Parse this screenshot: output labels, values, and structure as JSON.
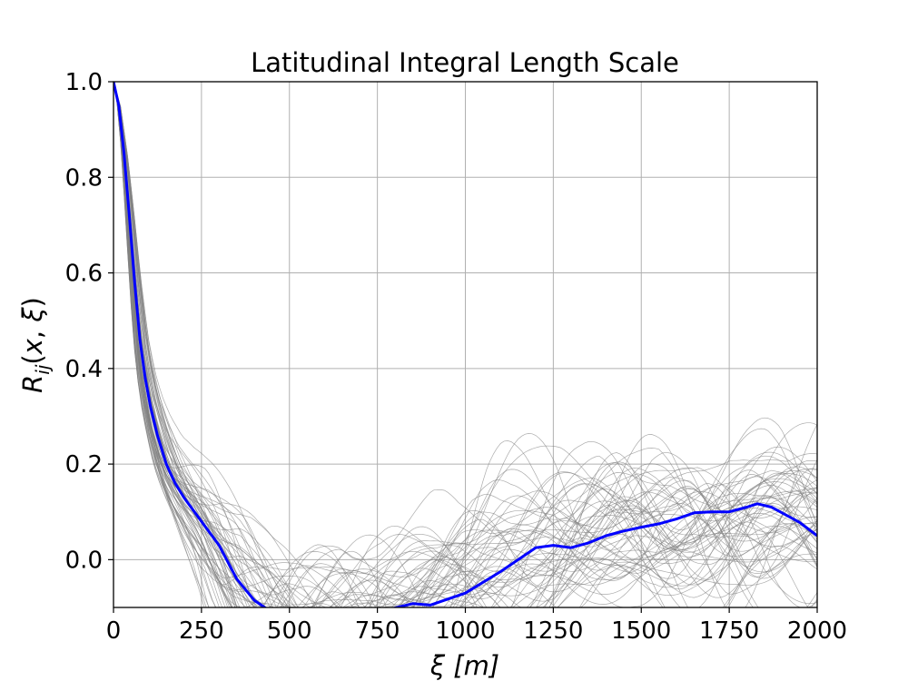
{
  "chart_data": {
    "type": "line",
    "title": "Latitudinal Integral Length Scale",
    "xlabel": "ξ [m]",
    "ylabel": "R_ij(x, ξ)",
    "xlim": [
      0,
      2000
    ],
    "ylim": [
      -0.1,
      1.0
    ],
    "xticks": [
      "0",
      "250",
      "500",
      "750",
      "1000",
      "1250",
      "1500",
      "1750",
      "2000"
    ],
    "yticks": [
      "0.0",
      "0.2",
      "0.4",
      "0.6",
      "0.8",
      "1.0"
    ],
    "grid": true,
    "colors": {
      "mean": "#0000ff",
      "ensemble": "#808080",
      "grid": "#b0b0b0"
    },
    "series": [
      {
        "role": "mean",
        "x": [
          0,
          15,
          30,
          45,
          60,
          75,
          90,
          105,
          125,
          150,
          175,
          200,
          250,
          300,
          350,
          400,
          450,
          480,
          550,
          650,
          750,
          850,
          900,
          1000,
          1100,
          1200,
          1250,
          1300,
          1350,
          1400,
          1450,
          1500,
          1550,
          1600,
          1650,
          1700,
          1750,
          1800,
          1830,
          1870,
          1900,
          1950,
          2000
        ],
        "y": [
          1.0,
          0.95,
          0.85,
          0.72,
          0.58,
          0.46,
          0.38,
          0.32,
          0.26,
          0.2,
          0.16,
          0.13,
          0.08,
          0.03,
          -0.04,
          -0.085,
          -0.11,
          -0.12,
          -0.13,
          -0.125,
          -0.11,
          -0.092,
          -0.095,
          -0.07,
          -0.025,
          0.025,
          0.03,
          0.025,
          0.035,
          0.05,
          0.06,
          0.068,
          0.075,
          0.085,
          0.098,
          0.1,
          0.1,
          0.11,
          0.117,
          0.11,
          0.098,
          0.078,
          0.05
        ]
      }
    ],
    "ensemble": {
      "count": 60,
      "seed": 7,
      "x_step": 10,
      "spread_y_range": [
        -0.1,
        0.36
      ]
    }
  }
}
